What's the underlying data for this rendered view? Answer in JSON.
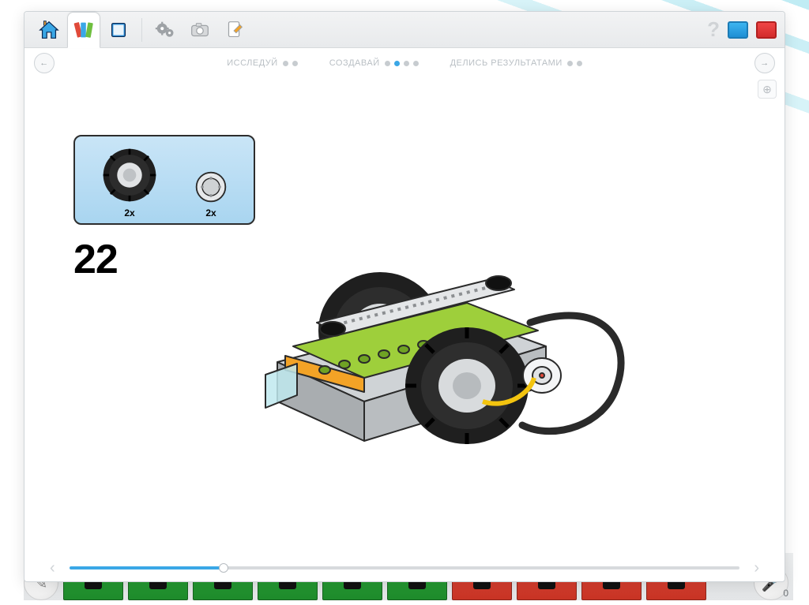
{
  "toolbar": {
    "icons": [
      "home-icon",
      "library-icon",
      "book-icon",
      "gears-icon",
      "camera-icon",
      "edit-icon"
    ],
    "active_tab_index": 1
  },
  "breadcrumb": {
    "sections": [
      {
        "label": "ИССЛЕДУЙ",
        "dots": [
          "off",
          "off"
        ]
      },
      {
        "label": "СОЗДАВАЙ",
        "dots": [
          "off",
          "on",
          "off",
          "off"
        ]
      },
      {
        "label": "ДЕЛИСЬ РЕЗУЛЬТАТАМИ",
        "dots": [
          "off",
          "off"
        ]
      }
    ]
  },
  "step": {
    "number": "22",
    "parts": [
      {
        "name": "tire-large",
        "qty": "2x"
      },
      {
        "name": "wheel-hub",
        "qty": "2x"
      }
    ],
    "parts_box": {
      "bg_top": "#c9e5f7",
      "bg_bottom": "#a9d5f0",
      "border": "#2d2d2d"
    },
    "model_colors": {
      "body_gray": "#cfd3d6",
      "lime": "#9ecf3b",
      "orange": "#f3a326",
      "cyan": "#bfe9ef",
      "tire": "#1f1f1f",
      "hub": "#d9dcdf",
      "cable": "#2a2a2a"
    }
  },
  "scrubber": {
    "progress_percent": 23,
    "track_on": "#3aa7e6",
    "track_off": "#d7dadd"
  },
  "tray": {
    "blocks": [
      "green",
      "green",
      "green",
      "green",
      "green",
      "green",
      "red",
      "red",
      "red",
      "red"
    ],
    "count": "0"
  },
  "colors": {
    "toolbar_bg_top": "#f2f3f4",
    "toolbar_bg_bottom": "#e8eaec",
    "window_border": "#cfd4d8",
    "breadcrumb_text": "#b9bfc4",
    "dot_off": "#c7ccd0",
    "dot_on": "#3aa7e6",
    "help_icon": "#d0d3d6",
    "square_blue": "#1e8fd4",
    "square_red": "#d22c2c"
  }
}
